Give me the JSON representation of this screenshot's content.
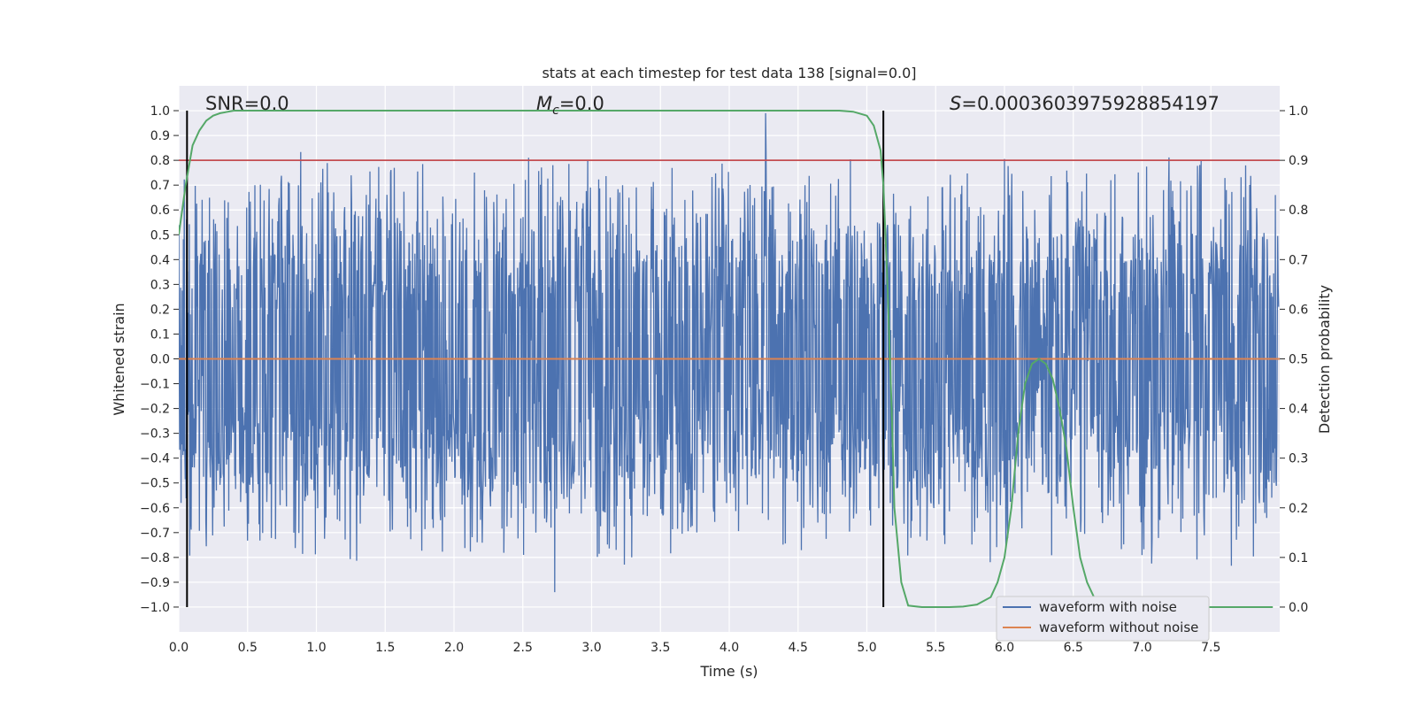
{
  "chart_data": {
    "type": "line",
    "title": "stats at each timestep for test data 138 [signal=0.0]",
    "xlabel": "Time (s)",
    "ylabel_left": "Whitened strain",
    "ylabel_right": "Detection probability",
    "xlim": [
      0.0,
      8.0
    ],
    "ylim_left": [
      -1.1,
      1.1
    ],
    "ylim_right": [
      -0.05,
      1.05
    ],
    "xticks": [
      0.0,
      0.5,
      1.0,
      1.5,
      2.0,
      2.5,
      3.0,
      3.5,
      4.0,
      4.5,
      5.0,
      5.5,
      6.0,
      6.5,
      7.0,
      7.5
    ],
    "xtick_labels": [
      "0.0",
      "0.5",
      "1.0",
      "1.5",
      "2.0",
      "2.5",
      "3.0",
      "3.5",
      "4.0",
      "4.5",
      "5.0",
      "5.5",
      "6.0",
      "6.5",
      "7.0",
      "7.5"
    ],
    "yticks_left": [
      1.0,
      0.9,
      0.8,
      0.7,
      0.6,
      0.5,
      0.4,
      0.3,
      0.2,
      0.1,
      0.0,
      -0.1,
      -0.2,
      -0.3,
      -0.4,
      -0.5,
      -0.6,
      -0.7,
      -0.8,
      -0.9,
      -1.0
    ],
    "ytick_labels_left": [
      "1.0",
      "0.9",
      "0.8",
      "0.7",
      "0.6",
      "0.5",
      "0.4",
      "0.3",
      "0.2",
      "0.1",
      "0.0",
      "−0.1",
      "−0.2",
      "−0.3",
      "−0.4",
      "−0.5",
      "−0.6",
      "−0.7",
      "−0.8",
      "−0.9",
      "−1.0"
    ],
    "yticks_right": [
      1.0,
      0.9,
      0.8,
      0.7,
      0.6,
      0.5,
      0.4,
      0.3,
      0.2,
      0.1,
      0.0
    ],
    "ytick_labels_right": [
      "1.0",
      "0.9",
      "0.8",
      "0.7",
      "0.6",
      "0.5",
      "0.4",
      "0.3",
      "0.2",
      "0.1",
      "0.0"
    ],
    "annotations": {
      "snr": "SNR=0.0",
      "mc_symbol": "M",
      "mc_sub": "c",
      "mc_value": "=0.0",
      "s_symbol": "S",
      "s_value": "=0.0003603975928854197"
    },
    "legend": {
      "position": "lower-right",
      "entries": [
        {
          "label": "waveform with noise",
          "color": "#4c72b0"
        },
        {
          "label": "waveform without noise",
          "color": "#dd8452"
        }
      ]
    },
    "series": [
      {
        "name": "waveform with noise",
        "axis": "left",
        "color": "#4c72b0",
        "amplitude_envelope": [
          -0.85,
          0.85
        ],
        "extremes": [
          0.99,
          -0.94
        ]
      },
      {
        "name": "waveform without noise",
        "axis": "left",
        "color": "#dd8452",
        "constant": 0.0
      },
      {
        "name": "detection probability",
        "axis": "right",
        "color": "#55a868",
        "x": [
          0.0,
          0.05,
          0.1,
          0.15,
          0.2,
          0.25,
          0.3,
          0.4,
          0.5,
          1.0,
          2.0,
          3.0,
          4.0,
          4.8,
          4.9,
          5.0,
          5.05,
          5.1,
          5.12,
          5.15,
          5.18,
          5.2,
          5.25,
          5.3,
          5.4,
          5.5,
          5.6,
          5.7,
          5.8,
          5.9,
          5.95,
          6.0,
          6.05,
          6.1,
          6.15,
          6.2,
          6.25,
          6.3,
          6.35,
          6.4,
          6.45,
          6.5,
          6.55,
          6.6,
          6.65,
          6.7,
          6.8,
          7.0,
          7.5,
          7.95
        ],
        "y": [
          0.75,
          0.85,
          0.93,
          0.96,
          0.98,
          0.99,
          0.995,
          1.0,
          1.0,
          1.0,
          1.0,
          1.0,
          1.0,
          1.0,
          0.998,
          0.99,
          0.97,
          0.92,
          0.85,
          0.65,
          0.4,
          0.2,
          0.05,
          0.003,
          0.0,
          0.0,
          0.0,
          0.001,
          0.005,
          0.02,
          0.05,
          0.1,
          0.2,
          0.35,
          0.45,
          0.49,
          0.5,
          0.49,
          0.46,
          0.4,
          0.32,
          0.2,
          0.1,
          0.05,
          0.02,
          0.005,
          0.001,
          0.0,
          0.0,
          0.0
        ]
      }
    ],
    "hlines": [
      {
        "y": 0.8,
        "axis": "left",
        "color": "#c44e52"
      }
    ],
    "vlines": [
      {
        "x": 0.06,
        "color": "#000000"
      },
      {
        "x": 5.12,
        "color": "#000000"
      }
    ]
  }
}
